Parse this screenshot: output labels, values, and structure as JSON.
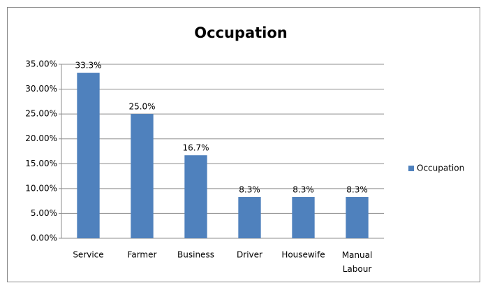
{
  "chart_data": {
    "type": "bar",
    "title": "Occupation",
    "categories": [
      "Service",
      "Farmer",
      "Business",
      "Driver",
      "Housewife",
      "Manual Labour"
    ],
    "series": [
      {
        "name": "Occupation",
        "color": "#4f81bd",
        "values": [
          33.3,
          25.0,
          16.7,
          8.3,
          8.3,
          8.3
        ],
        "value_labels": [
          "33.3%",
          "25.0%",
          "16.7%",
          "8.3%",
          "8.3%",
          "8.3%"
        ]
      }
    ],
    "ylim": [
      0,
      35
    ],
    "yticks": [
      {
        "value": 0,
        "label": "0.00%"
      },
      {
        "value": 5,
        "label": "5.00%"
      },
      {
        "value": 10,
        "label": "10.00%"
      },
      {
        "value": 15,
        "label": "15.00%"
      },
      {
        "value": 20,
        "label": "20.00%"
      },
      {
        "value": 25,
        "label": "25.00%"
      },
      {
        "value": 30,
        "label": "30.00%"
      },
      {
        "value": 35,
        "label": "35.00%"
      }
    ],
    "grid": true,
    "legend": "right"
  }
}
